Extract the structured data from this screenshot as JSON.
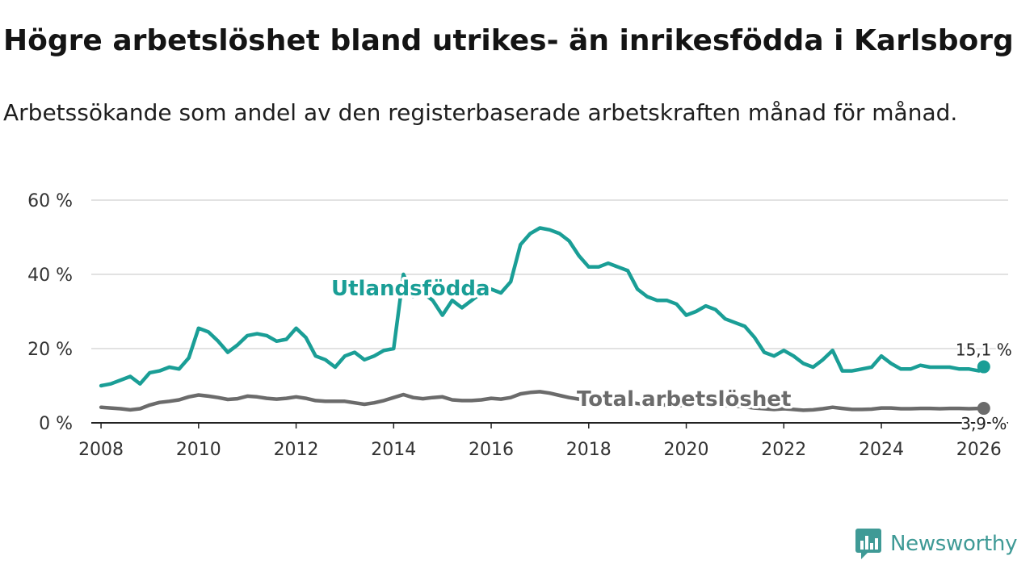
{
  "chart_data": {
    "type": "line",
    "title": "Högre arbetslöshet bland utrikes- än inrikesfödda i Karlsborg",
    "subtitle": "Arbetssökande som andel av den registerbaserade arbetskraften månad för månad.",
    "xlabel": "",
    "ylabel": "",
    "xlim": [
      2007.8,
      2026.6
    ],
    "ylim": [
      0,
      60
    ],
    "y_ticks": [
      {
        "value": 0,
        "label": "0 %"
      },
      {
        "value": 20,
        "label": "20 %"
      },
      {
        "value": 40,
        "label": "40 %"
      },
      {
        "value": 60,
        "label": "60 %"
      }
    ],
    "x_ticks": [
      {
        "value": 2008,
        "label": "2008"
      },
      {
        "value": 2010,
        "label": "2010"
      },
      {
        "value": 2012,
        "label": "2012"
      },
      {
        "value": 2014,
        "label": "2014"
      },
      {
        "value": 2016,
        "label": "2016"
      },
      {
        "value": 2018,
        "label": "2018"
      },
      {
        "value": 2020,
        "label": "2020"
      },
      {
        "value": 2022,
        "label": "2022"
      },
      {
        "value": 2024,
        "label": "2024"
      },
      {
        "value": 2026,
        "label": "2026"
      }
    ],
    "grid": true,
    "series": [
      {
        "name": "Utlandsfödda",
        "color": "#1a9e96",
        "end_label": "15,1 %",
        "x": [
          2008.0,
          2008.2,
          2008.4,
          2008.6,
          2008.8,
          2009.0,
          2009.2,
          2009.4,
          2009.6,
          2009.8,
          2010.0,
          2010.2,
          2010.4,
          2010.6,
          2010.8,
          2011.0,
          2011.2,
          2011.4,
          2011.6,
          2011.8,
          2012.0,
          2012.2,
          2012.4,
          2012.6,
          2012.8,
          2013.0,
          2013.2,
          2013.4,
          2013.6,
          2013.8,
          2014.0,
          2014.2,
          2014.4,
          2014.6,
          2014.8,
          2015.0,
          2015.2,
          2015.4,
          2015.6,
          2015.8,
          2016.0,
          2016.2,
          2016.4,
          2016.6,
          2016.8,
          2017.0,
          2017.2,
          2017.4,
          2017.6,
          2017.8,
          2018.0,
          2018.2,
          2018.4,
          2018.6,
          2018.8,
          2019.0,
          2019.2,
          2019.4,
          2019.6,
          2019.8,
          2020.0,
          2020.2,
          2020.4,
          2020.6,
          2020.8,
          2021.0,
          2021.2,
          2021.4,
          2021.6,
          2021.8,
          2022.0,
          2022.2,
          2022.4,
          2022.6,
          2022.8,
          2023.0,
          2023.2,
          2023.4,
          2023.6,
          2023.8,
          2024.0,
          2024.2,
          2024.4,
          2024.6,
          2024.8,
          2025.0,
          2025.2,
          2025.4,
          2025.6,
          2025.8,
          2026.0,
          2026.1
        ],
        "values": [
          10,
          10.5,
          11.5,
          12.5,
          10.5,
          13.5,
          14,
          15,
          14.5,
          17.5,
          25.5,
          24.5,
          22,
          19,
          21,
          23.5,
          24,
          23.5,
          22,
          22.5,
          25.5,
          23,
          18,
          17,
          15,
          18,
          19,
          17,
          18,
          19.5,
          20,
          40,
          34,
          35,
          33,
          29,
          33,
          31,
          33,
          35,
          36,
          35,
          38,
          48,
          51,
          52.5,
          52,
          51,
          49,
          45,
          42,
          42,
          43,
          42,
          41,
          36,
          34,
          33,
          33,
          32,
          29,
          30,
          31.5,
          30.5,
          28,
          27,
          26,
          23,
          19,
          18,
          19.5,
          18,
          16,
          15,
          17,
          19.5,
          14,
          14,
          14.5,
          15,
          18,
          16,
          14.5,
          14.5,
          15.5,
          15,
          15,
          15,
          14.5,
          14.5,
          14,
          15.1
        ]
      },
      {
        "name": "Total arbetslöshet",
        "color": "#6b6b6b",
        "end_label": "3,9 %",
        "x": [
          2008.0,
          2008.2,
          2008.4,
          2008.6,
          2008.8,
          2009.0,
          2009.2,
          2009.4,
          2009.6,
          2009.8,
          2010.0,
          2010.2,
          2010.4,
          2010.6,
          2010.8,
          2011.0,
          2011.2,
          2011.4,
          2011.6,
          2011.8,
          2012.0,
          2012.2,
          2012.4,
          2012.6,
          2012.8,
          2013.0,
          2013.2,
          2013.4,
          2013.6,
          2013.8,
          2014.0,
          2014.2,
          2014.4,
          2014.6,
          2014.8,
          2015.0,
          2015.2,
          2015.4,
          2015.6,
          2015.8,
          2016.0,
          2016.2,
          2016.4,
          2016.6,
          2016.8,
          2017.0,
          2017.2,
          2017.4,
          2017.6,
          2017.8,
          2018.0,
          2018.2,
          2018.4,
          2018.6,
          2018.8,
          2019.0,
          2019.2,
          2019.4,
          2019.6,
          2019.8,
          2020.0,
          2020.2,
          2020.4,
          2020.6,
          2020.8,
          2021.0,
          2021.2,
          2021.4,
          2021.6,
          2021.8,
          2022.0,
          2022.2,
          2022.4,
          2022.6,
          2022.8,
          2023.0,
          2023.2,
          2023.4,
          2023.6,
          2023.8,
          2024.0,
          2024.2,
          2024.4,
          2024.6,
          2024.8,
          2025.0,
          2025.2,
          2025.4,
          2025.6,
          2025.8,
          2026.0,
          2026.1
        ],
        "values": [
          4.2,
          4.0,
          3.8,
          3.5,
          3.8,
          4.8,
          5.5,
          5.8,
          6.2,
          7.0,
          7.5,
          7.2,
          6.8,
          6.3,
          6.5,
          7.2,
          7.0,
          6.6,
          6.4,
          6.6,
          7.0,
          6.6,
          6.0,
          5.8,
          5.8,
          5.8,
          5.4,
          5.0,
          5.4,
          6.0,
          6.8,
          7.6,
          6.8,
          6.5,
          6.8,
          7.0,
          6.2,
          6.0,
          6.0,
          6.2,
          6.6,
          6.4,
          6.8,
          7.8,
          8.2,
          8.4,
          8.0,
          7.4,
          6.8,
          6.4,
          6.2,
          6.0,
          6.0,
          5.8,
          5.6,
          5.2,
          5.0,
          4.8,
          4.8,
          4.6,
          4.8,
          5.0,
          5.2,
          4.9,
          4.6,
          4.5,
          4.3,
          4.0,
          3.8,
          3.6,
          3.8,
          3.6,
          3.4,
          3.5,
          3.8,
          4.2,
          3.9,
          3.6,
          3.6,
          3.7,
          4.0,
          4.0,
          3.8,
          3.8,
          3.9,
          3.9,
          3.8,
          3.9,
          3.9,
          3.8,
          3.9,
          3.9
        ]
      }
    ]
  },
  "branding": {
    "logo_text": "Newsworthy",
    "logo_color": "#3f9a96"
  }
}
